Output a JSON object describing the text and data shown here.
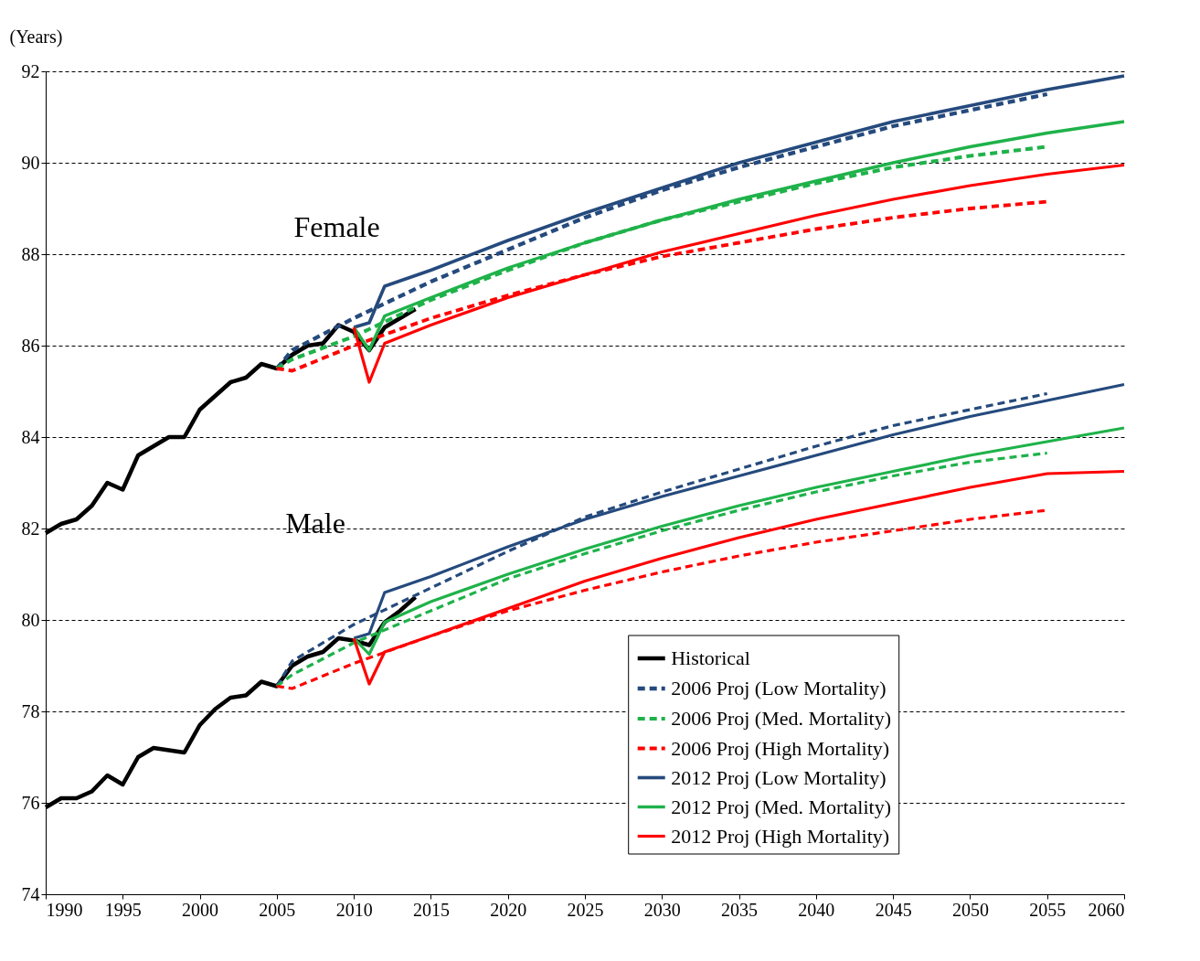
{
  "chart_data": {
    "type": "line",
    "ylabel": "(Years)",
    "xlim": [
      1990,
      2060
    ],
    "ylim": [
      74,
      92
    ],
    "xticks": [
      1990,
      1995,
      2000,
      2005,
      2010,
      2015,
      2020,
      2025,
      2030,
      2035,
      2040,
      2045,
      2050,
      2055,
      2060
    ],
    "yticks": [
      74,
      76,
      78,
      80,
      82,
      84,
      86,
      88,
      90,
      92
    ],
    "grid": "y",
    "legend": "bottom right",
    "marker": "none",
    "annotations": [
      "Female",
      "Male"
    ],
    "series": [
      {
        "name": "Historical",
        "color": "#000000",
        "line_style": "solid",
        "x": [
          1990,
          1991,
          1992,
          1993,
          1994,
          1995,
          1996,
          1997,
          1998,
          1999,
          2000,
          2001,
          2002,
          2003,
          2004,
          2005,
          2006,
          2007,
          2008,
          2009,
          2010,
          2011,
          2012,
          2013,
          2014
        ],
        "values": [
          81.9,
          82.1,
          82.2,
          82.5,
          83.0,
          82.85,
          83.6,
          83.8,
          84.0,
          84.0,
          84.6,
          84.9,
          85.2,
          85.3,
          85.6,
          85.5,
          85.8,
          86.0,
          86.05,
          86.45,
          86.3,
          85.9,
          86.4,
          86.6,
          86.8
        ]
      },
      {
        "name": "2006 Proj (Low Mortality)",
        "color": "#254a7d",
        "line_style": "dashed",
        "x": [
          2005,
          2006,
          2010,
          2015,
          2020,
          2025,
          2030,
          2035,
          2040,
          2045,
          2050,
          2055
        ],
        "values": [
          85.5,
          85.9,
          86.6,
          87.4,
          88.1,
          88.8,
          89.4,
          89.9,
          90.35,
          90.8,
          91.15,
          91.5
        ]
      },
      {
        "name": "2006 Proj (Med. Mortality)",
        "color": "#1fb24a",
        "line_style": "dashed",
        "x": [
          2005,
          2006,
          2010,
          2015,
          2020,
          2025,
          2030,
          2035,
          2040,
          2045,
          2050,
          2055
        ],
        "values": [
          85.5,
          85.7,
          86.2,
          87.0,
          87.65,
          88.25,
          88.75,
          89.15,
          89.55,
          89.9,
          90.15,
          90.35
        ]
      },
      {
        "name": "2006 Proj (High Mortality)",
        "color": "#ff0000",
        "line_style": "dashed",
        "x": [
          2005,
          2006,
          2010,
          2015,
          2020,
          2025,
          2030,
          2035,
          2040,
          2045,
          2050,
          2055
        ],
        "values": [
          85.5,
          85.45,
          86.0,
          86.6,
          87.1,
          87.55,
          87.95,
          88.25,
          88.55,
          88.8,
          89.0,
          89.15
        ]
      },
      {
        "name": "2012 Proj (Low Mortality)",
        "color": "#254a7d",
        "line_style": "solid",
        "x": [
          2010,
          2011,
          2012,
          2015,
          2020,
          2025,
          2030,
          2035,
          2040,
          2045,
          2050,
          2055,
          2060
        ],
        "values": [
          86.4,
          86.5,
          87.3,
          87.65,
          88.3,
          88.9,
          89.45,
          90.0,
          90.45,
          90.9,
          91.25,
          91.6,
          91.9
        ]
      },
      {
        "name": "2012 Proj (Med. Mortality)",
        "color": "#1fb24a",
        "line_style": "solid",
        "x": [
          2010,
          2011,
          2012,
          2015,
          2020,
          2025,
          2030,
          2035,
          2040,
          2045,
          2050,
          2055,
          2060
        ],
        "values": [
          86.4,
          85.9,
          86.65,
          87.05,
          87.7,
          88.25,
          88.75,
          89.2,
          89.6,
          90.0,
          90.35,
          90.65,
          90.9
        ]
      },
      {
        "name": "2012 Proj (High Mortality)",
        "color": "#ff0000",
        "line_style": "solid",
        "x": [
          2010,
          2011,
          2012,
          2015,
          2020,
          2025,
          2030,
          2035,
          2040,
          2045,
          2050,
          2055,
          2060
        ],
        "values": [
          86.4,
          85.2,
          86.05,
          86.45,
          87.05,
          87.55,
          88.05,
          88.45,
          88.85,
          89.2,
          89.5,
          89.75,
          89.95
        ]
      },
      {
        "color": "#000000",
        "line_style": "solid",
        "x": [
          1990,
          1991,
          1992,
          1993,
          1994,
          1995,
          1996,
          1997,
          1998,
          1999,
          2000,
          2001,
          2002,
          2003,
          2004,
          2005,
          2006,
          2007,
          2008,
          2009,
          2010,
          2011,
          2012,
          2013,
          2014
        ],
        "values": [
          75.9,
          76.1,
          76.1,
          76.25,
          76.6,
          76.4,
          77.0,
          77.2,
          77.15,
          77.1,
          77.7,
          78.05,
          78.3,
          78.35,
          78.65,
          78.55,
          79.0,
          79.2,
          79.3,
          79.6,
          79.55,
          79.45,
          79.95,
          80.2,
          80.5
        ]
      },
      {
        "color": "#254a7d",
        "line_style": "dashed",
        "x": [
          2005,
          2006,
          2010,
          2015,
          2020,
          2025,
          2030,
          2035,
          2040,
          2045,
          2050,
          2055
        ],
        "values": [
          78.55,
          79.1,
          79.9,
          80.7,
          81.5,
          82.25,
          82.8,
          83.3,
          83.8,
          84.25,
          84.6,
          84.95
        ]
      },
      {
        "color": "#1fb24a",
        "line_style": "dashed",
        "x": [
          2005,
          2006,
          2010,
          2015,
          2020,
          2025,
          2030,
          2035,
          2040,
          2045,
          2050,
          2055
        ],
        "values": [
          78.55,
          78.8,
          79.5,
          80.2,
          80.9,
          81.45,
          81.95,
          82.4,
          82.8,
          83.15,
          83.45,
          83.65
        ]
      },
      {
        "color": "#ff0000",
        "line_style": "dashed",
        "x": [
          2005,
          2006,
          2010,
          2015,
          2020,
          2025,
          2030,
          2035,
          2040,
          2045,
          2050,
          2055
        ],
        "values": [
          78.55,
          78.5,
          79.05,
          79.65,
          80.2,
          80.65,
          81.05,
          81.4,
          81.7,
          81.95,
          82.2,
          82.4
        ]
      },
      {
        "color": "#254a7d",
        "line_style": "solid",
        "x": [
          2010,
          2011,
          2012,
          2015,
          2020,
          2025,
          2030,
          2035,
          2040,
          2045,
          2050,
          2055,
          2060
        ],
        "values": [
          79.6,
          79.7,
          80.6,
          80.95,
          81.6,
          82.2,
          82.7,
          83.15,
          83.6,
          84.05,
          84.45,
          84.8,
          85.15
        ]
      },
      {
        "color": "#1fb24a",
        "line_style": "solid",
        "x": [
          2010,
          2011,
          2012,
          2015,
          2020,
          2025,
          2030,
          2035,
          2040,
          2045,
          2050,
          2055,
          2060
        ],
        "values": [
          79.6,
          79.25,
          79.95,
          80.4,
          81.0,
          81.55,
          82.05,
          82.5,
          82.9,
          83.25,
          83.6,
          83.9,
          84.2
        ]
      },
      {
        "color": "#ff0000",
        "line_style": "solid",
        "x": [
          2010,
          2011,
          2012,
          2015,
          2020,
          2025,
          2030,
          2035,
          2040,
          2045,
          2050,
          2055,
          2060
        ],
        "values": [
          79.6,
          78.6,
          79.3,
          79.65,
          80.25,
          80.85,
          81.35,
          81.8,
          82.2,
          82.55,
          82.9,
          83.2,
          83.25
        ]
      }
    ]
  }
}
